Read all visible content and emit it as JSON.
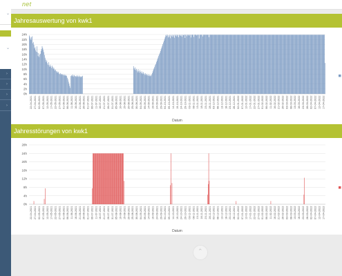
{
  "app": {
    "brand": "net"
  },
  "sidebar": {
    "chevron_glyph": "⌄",
    "small_chevron_glyph": "›",
    "accent": "#b4c233",
    "nav_color": "#3c5977"
  },
  "panels": [
    {
      "title": "Jahresauswertung von kwk1"
    },
    {
      "title": "Jahresstörungen von kwk1"
    }
  ],
  "footer": {
    "icon": "chevron-up-icon",
    "glyph": "⌃"
  },
  "chart_data": [
    {
      "type": "bar",
      "title": "Jahresauswertung von kwk1",
      "xlabel": "Datum",
      "ylabel": "",
      "ylim": [
        0,
        24
      ],
      "y_ticks": [
        "0h",
        "2h",
        "4h",
        "6h",
        "8h",
        "10h",
        "12h",
        "14h",
        "16h",
        "18h",
        "20h",
        "22h",
        "24h"
      ],
      "color": "#7f9dc4",
      "legend": "right",
      "x_tick_labels": [
        "22-04-2021",
        "27-04-2021",
        "02-05-2021",
        "07-05-2021",
        "12-05-2021",
        "17-05-2021",
        "22-05-2021",
        "27-05-2021",
        "01-06-2021",
        "06-06-2021",
        "11-06-2021",
        "16-06-2021",
        "21-06-2021",
        "26-06-2021",
        "01-07-2021",
        "06-07-2021",
        "11-07-2021",
        "16-07-2021",
        "21-07-2021",
        "26-07-2021",
        "31-07-2021",
        "05-08-2021",
        "10-08-2021",
        "15-08-2021",
        "20-08-2021",
        "25-08-2021",
        "30-08-2021",
        "04-09-2021",
        "09-09-2021",
        "14-09-2021",
        "19-09-2021",
        "24-09-2021",
        "29-09-2021",
        "04-10-2021",
        "09-10-2021",
        "14-10-2021",
        "19-10-2021",
        "24-10-2021",
        "29-10-2021",
        "03-11-2021",
        "08-11-2021",
        "13-11-2021",
        "18-11-2021",
        "23-11-2021",
        "28-11-2021",
        "03-12-2021",
        "08-12-2021",
        "13-12-2021",
        "18-12-2021",
        "23-12-2021",
        "28-12-2021",
        "02-01-2022",
        "07-01-2022",
        "12-01-2022",
        "17-01-2022",
        "22-01-2022",
        "27-01-2022",
        "01-02-2022",
        "06-02-2022",
        "11-02-2022",
        "16-02-2022",
        "21-02-2022",
        "26-02-2022",
        "03-03-2022",
        "08-03-2022",
        "13-03-2022",
        "18-03-2022",
        "23-03-2022",
        "28-03-2022",
        "02-04-2022",
        "07-04-2022",
        "12-04-2022",
        "17-04-2022"
      ],
      "values": [
        23.6,
        23.1,
        22.4,
        21.8,
        22.9,
        23.3,
        20.5,
        21.0,
        19.8,
        18.4,
        18.9,
        17.6,
        17.0,
        19.2,
        16.8,
        15.3,
        16.5,
        14.9,
        15.8,
        16.2,
        17.4,
        18.1,
        19.3,
        18.6,
        17.8,
        16.9,
        15.7,
        14.6,
        13.8,
        12.9,
        13.5,
        12.4,
        11.7,
        12.8,
        11.5,
        10.9,
        11.8,
        11.2,
        10.5,
        11.4,
        10.8,
        10.1,
        10.6,
        9.9,
        9.4,
        9.8,
        9.2,
        8.7,
        9.1,
        8.5,
        8.9,
        8.2,
        7.9,
        8.4,
        8.0,
        7.7,
        8.1,
        7.8,
        7.5,
        7.9,
        7.6,
        7.3,
        7.7,
        7.4,
        7.2,
        6.5,
        5.8,
        4.9,
        4.1,
        3.2,
        2.4,
        7.2,
        7.5,
        7.1,
        7.8,
        7.4,
        6.9,
        7.6,
        7.2,
        7.0,
        7.3,
        6.8,
        7.5,
        7.1,
        6.9,
        7.4,
        7.0,
        6.7,
        7.2,
        6.8,
        7.0,
        7.3,
        0,
        0,
        0,
        0,
        0,
        0,
        0,
        0,
        0,
        0,
        0,
        0,
        0,
        0,
        0,
        0,
        0,
        0,
        0,
        0,
        0,
        0,
        0,
        0,
        0,
        0,
        0,
        0,
        0,
        0,
        0,
        0,
        0,
        0,
        0,
        0,
        0,
        0,
        0,
        0,
        0,
        0,
        0,
        0,
        0,
        0,
        0,
        0,
        0,
        0,
        0,
        0,
        0,
        0,
        0,
        0,
        0,
        0,
        0,
        0,
        0,
        0,
        0,
        0,
        0,
        0,
        0,
        0,
        0,
        0,
        0,
        0,
        0,
        0,
        0,
        0,
        0,
        0,
        0,
        0,
        0,
        0,
        0,
        0,
        0,
        0,
        11.2,
        10.4,
        9.8,
        10.7,
        9.6,
        10.1,
        9.4,
        8.7,
        9.9,
        9.2,
        8.6,
        9.5,
        8.9,
        8.3,
        9.1,
        8.5,
        8.0,
        8.8,
        8.2,
        7.7,
        8.4,
        7.9,
        7.5,
        8.1,
        7.6,
        7.3,
        7.9,
        7.4,
        7.1,
        7.6,
        7.2,
        7.8,
        8.4,
        9.1,
        9.8,
        10.3,
        10.9,
        11.6,
        12.1,
        12.8,
        13.4,
        14.1,
        14.7,
        15.4,
        16.0,
        16.6,
        17.3,
        18.0,
        18.7,
        19.4,
        20.1,
        20.8,
        21.5,
        22.2,
        22.9,
        23.6,
        23.9,
        23.4,
        23.9,
        22.8,
        23.7,
        23.1,
        23.9,
        22.5,
        23.8,
        23.3,
        23.9,
        23.0,
        23.6,
        23.9,
        22.7,
        23.9,
        23.5,
        23.9,
        23.2,
        23.9,
        23.8,
        22.9,
        23.9,
        23.6,
        23.9,
        23.4,
        23.9,
        23.1,
        23.9,
        23.7,
        23.9,
        23.9,
        22.6,
        23.9,
        23.9,
        23.3,
        23.9,
        23.9,
        23.9,
        23.5,
        23.9,
        23.9,
        22.8,
        23.9,
        23.9,
        23.9,
        23.9,
        23.0,
        23.9,
        23.9,
        23.9,
        23.9,
        23.6,
        23.9,
        23.9,
        23.9,
        22.4,
        23.9,
        23.9,
        23.9,
        23.9,
        23.9,
        23.2,
        23.9,
        23.9,
        23.9,
        23.9,
        23.9,
        23.9,
        23.9,
        23.9,
        23.9,
        23.9,
        22.9,
        23.9,
        23.9,
        23.9,
        23.9,
        23.9,
        23.9,
        23.9,
        23.9,
        23.9,
        23.9,
        23.9,
        23.9,
        23.9,
        23.9,
        23.9,
        23.9,
        23.9,
        23.9,
        23.9,
        23.9,
        23.9,
        23.9,
        23.9,
        23.9,
        23.9,
        23.9,
        23.9,
        23.9,
        23.9,
        23.9,
        23.9,
        23.9,
        23.9,
        23.9,
        23.9,
        23.9,
        23.9,
        23.9,
        23.9,
        23.9,
        23.9,
        23.9,
        23.9,
        23.9,
        23.9,
        23.9,
        23.9,
        23.9,
        23.9,
        23.9,
        23.9,
        23.9,
        23.9,
        23.9,
        23.9,
        23.9,
        23.9,
        23.9,
        23.9,
        23.9,
        23.9,
        23.9,
        23.9,
        23.9,
        23.9,
        23.9,
        23.9,
        23.9,
        23.9,
        23.9,
        23.9,
        23.9,
        23.9,
        23.9,
        23.9,
        23.9,
        23.9,
        23.9,
        23.9,
        23.9,
        23.9,
        23.9,
        23.9,
        23.9,
        23.9,
        23.9,
        23.9,
        23.9,
        23.9,
        23.9,
        23.9,
        23.9,
        23.9,
        23.9,
        23.9,
        23.9,
        23.9,
        23.9,
        23.9,
        23.9,
        23.9,
        23.9,
        23.9,
        23.9,
        23.9,
        23.9,
        23.9,
        23.9,
        23.9,
        23.9,
        23.9,
        23.9,
        23.9,
        23.9,
        23.9,
        23.9,
        23.9,
        23.9,
        23.9,
        23.9,
        23.9,
        23.9,
        23.9,
        23.9,
        23.9,
        23.9,
        23.9,
        23.9,
        23.9,
        23.9,
        23.9,
        23.9,
        23.9,
        23.9,
        23.9,
        23.9,
        23.9,
        23.9,
        23.9,
        23.9,
        23.9,
        23.9,
        23.9,
        23.9,
        23.9,
        23.9,
        23.9,
        23.9,
        23.9,
        23.9,
        23.9,
        23.9,
        23.9,
        23.9,
        23.9,
        23.9,
        23.9,
        23.9,
        23.9,
        23.9,
        23.9,
        23.9,
        23.9,
        23.9,
        23.9,
        23.9,
        23.9,
        23.9,
        23.9,
        23.9,
        23.9,
        23.9,
        23.9,
        23.9,
        23.9,
        23.9,
        23.9,
        23.9,
        23.9,
        23.9,
        23.9,
        23.9,
        23.9,
        23.9,
        23.9,
        23.9,
        23.9,
        23.9,
        23.9,
        23.9,
        23.9,
        23.9,
        23.9,
        23.9,
        23.9,
        23.9,
        23.9,
        12.5
      ]
    },
    {
      "type": "bar",
      "title": "Jahresstörungen von kwk1",
      "xlabel": "Datum",
      "ylabel": "",
      "ylim": [
        0,
        28
      ],
      "y_ticks": [
        "0h",
        "4h",
        "8h",
        "12h",
        "16h",
        "20h",
        "24h",
        "28h"
      ],
      "color": "#e05656",
      "legend": "right",
      "x_tick_labels": [
        "22-04-2021",
        "27-04-2021",
        "02-05-2021",
        "07-05-2021",
        "12-05-2021",
        "17-05-2021",
        "22-05-2021",
        "27-05-2021",
        "01-06-2021",
        "06-06-2021",
        "11-06-2021",
        "16-06-2021",
        "21-06-2021",
        "26-06-2021",
        "01-07-2021",
        "06-07-2021",
        "11-07-2021",
        "16-07-2021",
        "21-07-2021",
        "26-07-2021",
        "31-07-2021",
        "05-08-2021",
        "10-08-2021",
        "15-08-2021",
        "20-08-2021",
        "25-08-2021",
        "30-08-2021",
        "04-09-2021",
        "09-09-2021",
        "14-09-2021",
        "19-09-2021",
        "24-09-2021",
        "29-09-2021",
        "04-10-2021",
        "09-10-2021",
        "14-10-2021",
        "19-10-2021",
        "24-10-2021",
        "29-10-2021",
        "03-11-2021",
        "08-11-2021",
        "13-11-2021",
        "18-11-2021",
        "23-11-2021",
        "28-11-2021",
        "03-12-2021",
        "08-12-2021",
        "13-12-2021",
        "18-12-2021",
        "23-12-2021",
        "28-12-2021",
        "02-01-2022",
        "07-01-2022",
        "12-01-2022",
        "17-01-2022",
        "22-01-2022",
        "27-01-2022",
        "01-02-2022",
        "06-02-2022",
        "11-02-2022",
        "16-02-2022",
        "21-02-2022",
        "26-02-2022",
        "03-03-2022",
        "08-03-2022",
        "13-03-2022",
        "18-03-2022",
        "23-03-2022",
        "28-03-2022",
        "02-04-2022",
        "07-04-2022",
        "12-04-2022",
        "17-04-2022"
      ],
      "values": [
        0,
        0,
        0,
        0,
        0,
        0,
        0,
        0,
        0,
        1.5,
        0,
        0,
        0,
        0,
        0,
        0,
        0,
        0,
        0,
        0,
        0,
        0,
        0,
        0,
        0,
        0,
        0,
        0,
        0,
        2.5,
        0,
        7.5,
        0,
        0,
        0,
        0,
        0,
        0,
        0,
        0,
        0,
        0,
        0,
        0,
        0,
        0,
        0,
        0,
        0,
        0,
        0,
        0,
        0,
        0,
        0,
        0,
        0,
        0,
        0,
        0,
        0,
        0,
        0,
        0,
        0,
        0,
        0,
        0,
        0,
        0,
        0,
        0,
        0,
        0,
        0,
        0,
        0,
        0,
        0,
        0,
        0,
        0,
        0,
        0,
        0,
        0,
        0,
        0,
        0,
        0,
        0,
        0,
        0,
        0,
        0,
        0,
        0,
        0,
        0,
        0,
        0,
        0,
        0,
        0,
        0,
        0,
        0,
        0,
        0,
        0,
        0,
        0,
        0,
        0,
        0,
        0,
        0,
        0,
        0,
        0,
        0,
        0,
        7.5,
        24,
        24,
        24,
        24,
        24,
        24,
        24,
        24,
        24,
        24,
        24,
        24,
        24,
        24,
        24,
        24,
        24,
        24,
        24,
        24,
        24,
        24,
        24,
        24,
        24,
        24,
        24,
        24,
        24,
        24,
        24,
        24,
        24,
        24,
        24,
        24,
        24,
        24,
        24,
        24,
        24,
        24,
        24,
        24,
        24,
        24,
        24,
        24,
        24,
        24,
        24,
        24,
        24,
        24,
        24,
        24,
        24,
        24,
        24,
        24,
        11,
        0,
        0,
        0,
        0,
        0,
        0,
        0,
        0,
        0,
        0,
        0,
        0,
        0,
        0,
        0,
        0,
        0,
        0,
        0,
        0,
        0,
        0,
        0,
        0,
        0,
        0,
        0,
        0,
        0,
        0,
        0,
        0,
        0,
        0,
        0,
        0,
        0,
        0,
        0,
        0,
        0,
        0,
        0,
        0,
        0,
        0,
        0,
        0,
        0,
        0,
        0,
        0,
        0,
        0,
        0,
        0,
        0,
        0,
        0,
        0,
        0,
        0,
        0,
        0,
        0,
        0,
        0,
        0,
        0,
        0,
        0,
        0,
        0,
        0,
        0,
        0,
        0,
        0,
        0,
        0,
        0,
        0,
        0,
        0,
        0,
        0,
        0,
        0,
        0,
        9,
        24,
        0,
        10,
        0,
        0,
        0,
        0,
        0,
        0,
        0,
        0,
        0,
        0,
        0,
        0,
        0,
        0,
        0,
        0,
        0,
        0,
        0,
        0,
        0,
        0,
        0,
        0,
        0,
        0,
        0,
        0,
        0,
        0,
        0,
        0,
        0,
        0,
        0,
        0,
        0,
        0,
        0,
        0,
        0,
        0,
        0,
        0,
        0,
        0,
        0,
        0,
        0,
        0,
        0,
        0,
        0,
        0,
        0,
        0,
        0,
        0,
        0,
        0,
        0,
        0,
        0,
        0,
        0,
        0,
        0,
        0,
        4.5,
        9.5,
        24,
        11,
        0,
        0,
        0,
        0,
        0,
        0,
        0,
        0,
        0,
        0,
        0,
        0,
        0,
        0,
        0,
        0,
        0,
        0,
        0,
        0,
        0,
        0,
        0,
        0,
        0,
        0,
        0,
        0,
        0,
        0,
        0,
        0,
        0,
        0,
        0,
        0,
        0,
        0,
        0,
        0,
        0,
        0,
        0,
        0,
        0,
        0,
        0,
        0,
        0,
        0,
        0,
        1.5,
        0,
        0,
        0,
        0,
        0,
        0,
        0,
        0,
        0,
        0,
        0,
        0,
        0,
        0,
        0,
        0,
        0,
        0,
        0,
        0,
        0,
        0,
        0,
        0,
        0,
        0,
        0,
        0,
        0,
        0,
        0,
        0,
        0,
        0,
        0,
        0,
        0,
        0,
        0,
        0,
        0,
        0,
        0,
        0,
        0,
        0,
        0,
        0,
        0,
        0,
        0,
        0,
        0,
        0,
        0,
        0,
        0,
        0,
        0,
        0,
        0,
        0,
        0,
        0,
        0,
        0,
        1.5,
        0,
        0,
        0,
        0,
        0,
        0,
        0,
        0,
        0,
        0,
        0,
        0,
        0,
        0,
        0,
        0,
        0,
        0,
        0,
        0,
        0,
        0,
        0,
        0,
        0,
        0,
        0,
        0,
        0,
        0,
        0,
        0,
        0,
        0,
        0,
        0,
        0,
        0,
        0,
        0,
        0,
        0,
        0,
        0,
        0,
        0,
        0,
        0,
        0,
        0,
        0,
        0,
        0,
        0,
        0,
        0,
        0,
        0,
        0,
        0,
        0,
        0,
        0,
        4.5,
        12.5,
        0,
        0,
        0,
        0,
        0,
        0,
        0,
        0,
        0,
        0,
        0,
        0,
        0,
        0,
        0,
        0,
        0,
        0,
        0,
        0,
        0,
        0,
        0,
        0,
        0,
        0,
        0,
        0,
        0,
        0,
        0,
        0,
        0,
        0,
        0,
        0,
        0,
        0,
        0,
        0
      ]
    }
  ]
}
